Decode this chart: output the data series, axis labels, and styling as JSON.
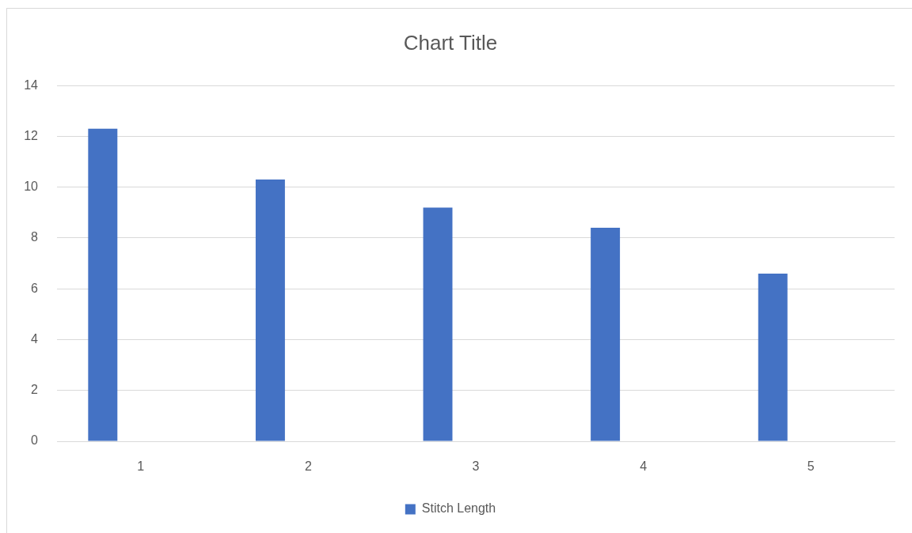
{
  "chart_data": {
    "type": "bar",
    "title": "Chart Title",
    "categories": [
      "1",
      "2",
      "3",
      "4",
      "5"
    ],
    "series": [
      {
        "name": "Stitch Length",
        "color": "#4472c4",
        "values": [
          12.3,
          10.3,
          9.2,
          8.4,
          6.6
        ]
      },
      {
        "values": [
          null,
          null,
          null,
          null,
          null
        ]
      }
    ],
    "ylim": [
      0,
      14
    ],
    "yticks": [
      0,
      2,
      4,
      6,
      8,
      10,
      12,
      14
    ],
    "grid": "y",
    "legend": "bottom"
  }
}
